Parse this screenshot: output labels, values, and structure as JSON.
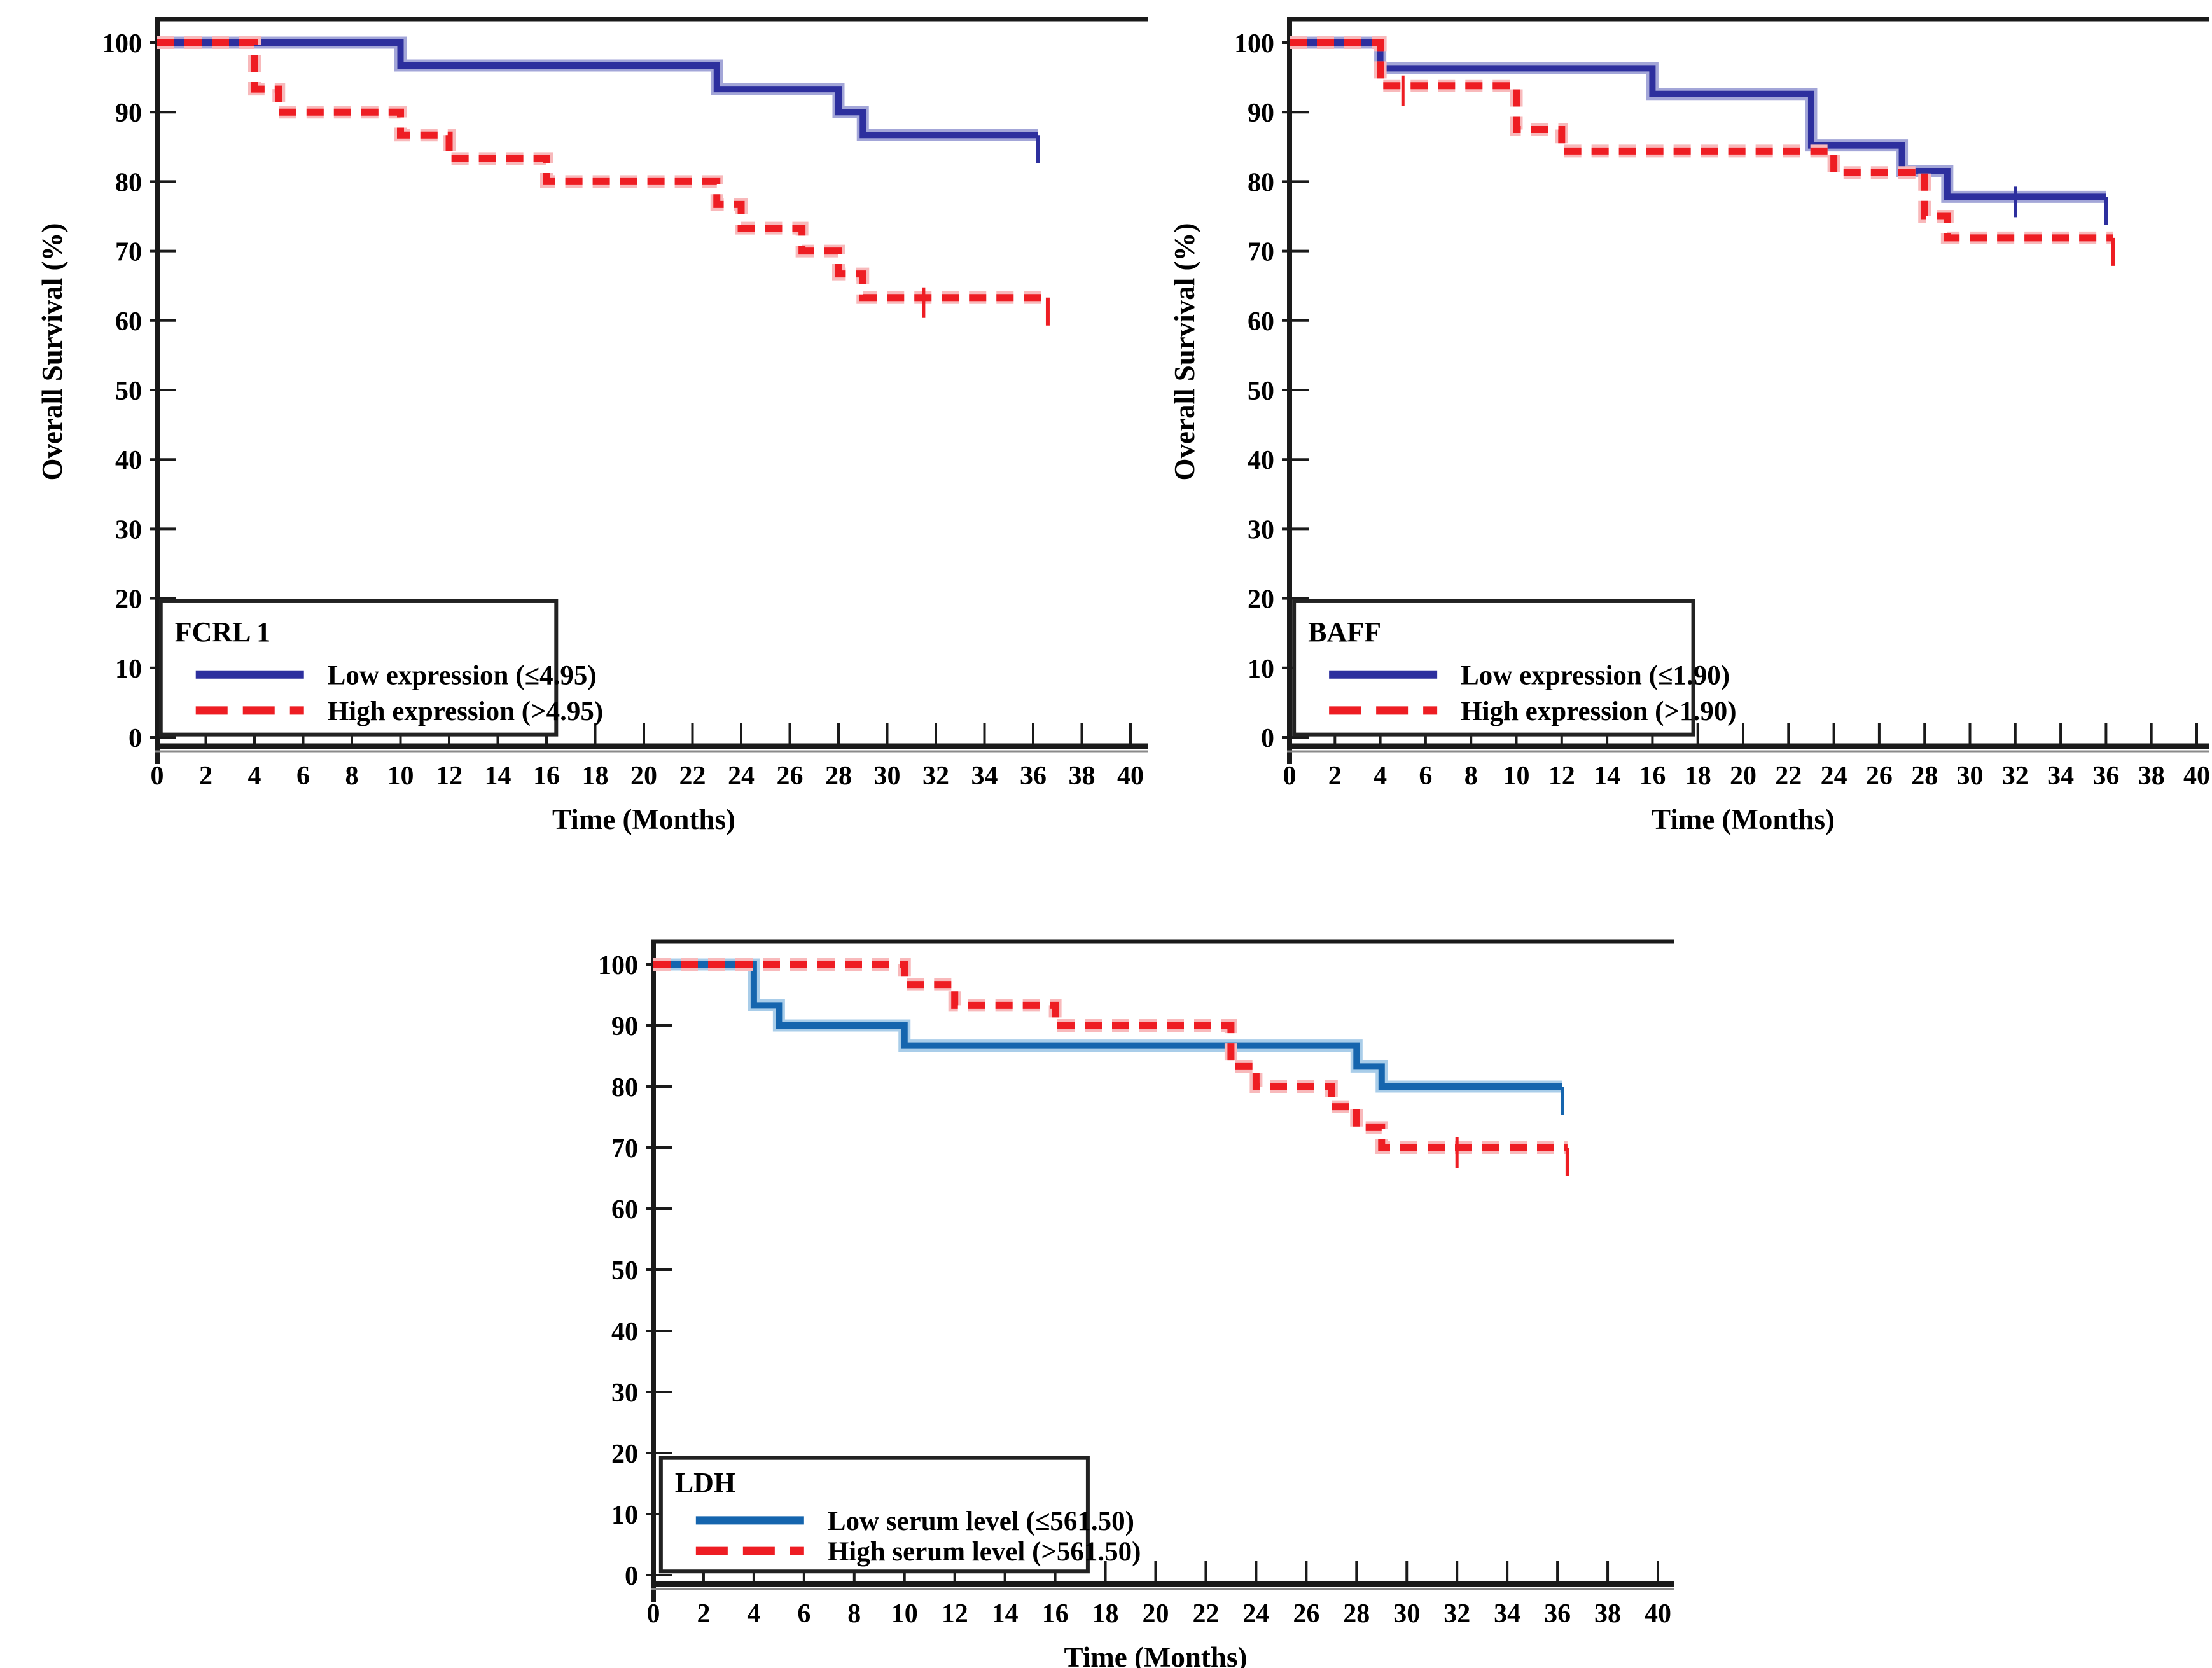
{
  "page": {
    "background": "#ffffff"
  },
  "colors": {
    "axis": "#1a1a1a",
    "axis_shadow": "#8a8a8a",
    "text": "#000000",
    "navy_blue": "#2D2F9E",
    "navy_blue_halo": "#A3A6D8",
    "steel_blue": "#1565AE",
    "steel_blue_halo": "#A9CDE9",
    "red": "#EE1D23",
    "red_halo": "#F8B9BB"
  },
  "axes_common": {
    "xlabel": "Time (Months)",
    "ylabel": "Overall Survival  (%)",
    "x_ticks": [
      0,
      2,
      4,
      6,
      8,
      10,
      12,
      14,
      16,
      18,
      20,
      22,
      24,
      26,
      28,
      30,
      32,
      34,
      36,
      38,
      40
    ],
    "y_ticks": [
      0,
      10,
      20,
      30,
      40,
      50,
      60,
      70,
      80,
      90,
      100
    ],
    "xlim": [
      0,
      40
    ],
    "ylim": [
      0,
      100
    ],
    "grid": "off",
    "legend_position": "lower-left"
  },
  "chart_data": [
    {
      "type": "line",
      "subtype": "kaplan-meier-step",
      "key": "fcrl1",
      "legend": {
        "title": "FCRL 1",
        "entries": [
          {
            "label": "Low expression (≤4.95)",
            "series": "low"
          },
          {
            "label": "High expression  (>4.95)",
            "series": "high"
          }
        ]
      },
      "series": [
        {
          "name": "low",
          "label": "Low expression (≤4.95)",
          "color": "#2D2F9E",
          "halo": "#A3A6D8",
          "dashed": false,
          "points": [
            [
              0,
              100
            ],
            [
              10,
              96.7
            ],
            [
              23,
              93.3
            ],
            [
              28,
              90
            ],
            [
              29,
              86.7
            ]
          ],
          "end": 36.2,
          "censors": [],
          "end_tick": true
        },
        {
          "name": "high",
          "label": "High expression  (>4.95)",
          "color": "#EE1D23",
          "halo": "#F8B9BB",
          "dashed": true,
          "points": [
            [
              0,
              100
            ],
            [
              4,
              93.3
            ],
            [
              5,
              90
            ],
            [
              10,
              86.7
            ],
            [
              12,
              83.3
            ],
            [
              16,
              80
            ],
            [
              23,
              76.7
            ],
            [
              24,
              73.3
            ],
            [
              26.5,
              70
            ],
            [
              28,
              66.7
            ],
            [
              29,
              63.3
            ]
          ],
          "end": 36.6,
          "censors": [
            31.5
          ],
          "end_tick": true
        }
      ]
    },
    {
      "type": "line",
      "subtype": "kaplan-meier-step",
      "key": "baff",
      "legend": {
        "title": "BAFF",
        "entries": [
          {
            "label": "Low expression (≤1.90)",
            "series": "low"
          },
          {
            "label": "High expression  (>1.90)",
            "series": "high"
          }
        ]
      },
      "series": [
        {
          "name": "low",
          "label": "Low expression (≤1.90)",
          "color": "#2D2F9E",
          "halo": "#A3A6D8",
          "dashed": false,
          "points": [
            [
              0,
              100
            ],
            [
              4,
              96.3
            ],
            [
              16,
              92.6
            ],
            [
              23,
              85.2
            ],
            [
              27,
              81.5
            ],
            [
              29,
              77.8
            ]
          ],
          "end": 36.0,
          "censors": [
            32
          ],
          "end_tick": true
        },
        {
          "name": "high",
          "label": "High expression  (>1.90)",
          "color": "#EE1D23",
          "halo": "#F8B9BB",
          "dashed": true,
          "points": [
            [
              0,
              100
            ],
            [
              4,
              93.8
            ],
            [
              10,
              87.5
            ],
            [
              12,
              84.4
            ],
            [
              24,
              81.3
            ],
            [
              28,
              75
            ],
            [
              29,
              71.9
            ]
          ],
          "end": 36.3,
          "censors": [
            5
          ],
          "end_tick": true
        }
      ]
    },
    {
      "type": "line",
      "subtype": "kaplan-meier-step",
      "key": "ldh",
      "legend": {
        "title": "LDH",
        "entries": [
          {
            "label": "Low serum level (≤561.50)",
            "series": "low"
          },
          {
            "label": "High serum level (>561.50)",
            "series": "high"
          }
        ]
      },
      "series": [
        {
          "name": "low",
          "label": "Low serum level (≤561.50)",
          "color": "#1565AE",
          "halo": "#A9CDE9",
          "dashed": false,
          "points": [
            [
              0,
              100
            ],
            [
              4,
              93.3
            ],
            [
              5,
              90
            ],
            [
              10,
              86.7
            ],
            [
              28,
              83.3
            ],
            [
              29,
              80
            ]
          ],
          "end": 36.2,
          "censors": [],
          "end_tick": true
        },
        {
          "name": "high",
          "label": "High serum level (>561.50)",
          "color": "#EE1D23",
          "halo": "#F8B9BB",
          "dashed": true,
          "points": [
            [
              0,
              100
            ],
            [
              10,
              96.7
            ],
            [
              12,
              93.3
            ],
            [
              16,
              90
            ],
            [
              23,
              83.3
            ],
            [
              24,
              80
            ],
            [
              27,
              76.7
            ],
            [
              28,
              73.3
            ],
            [
              29,
              70
            ]
          ],
          "end": 36.4,
          "censors": [
            32
          ],
          "end_tick": true
        }
      ]
    }
  ]
}
